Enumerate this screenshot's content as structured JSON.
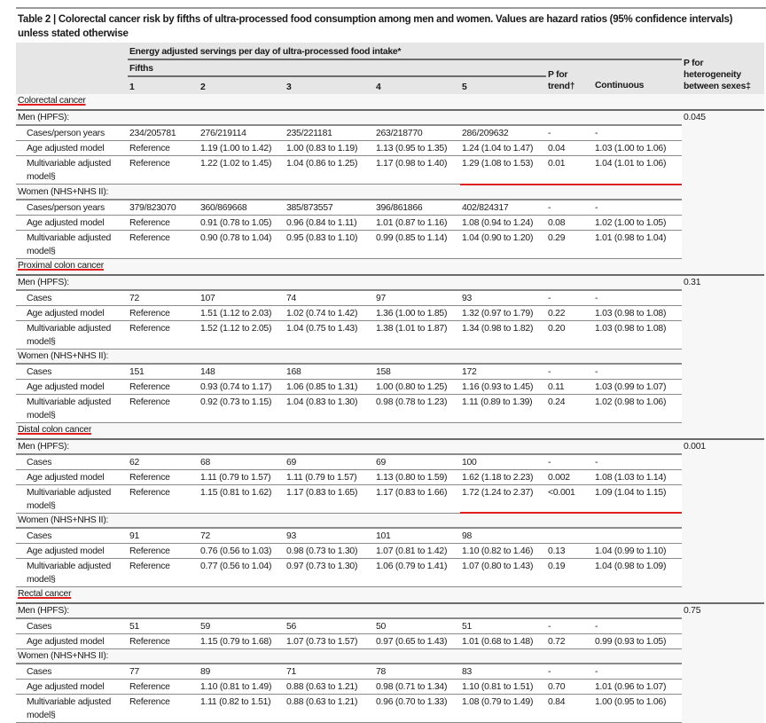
{
  "title": "Table 2 | Colorectal cancer risk by fifths of ultra-processed food consumption among men and women. Values are hazard ratios (95% confidence intervals) unless stated otherwise",
  "header": {
    "group_label": "Energy adjusted servings per day of ultra-processed food intake*",
    "fifths_label": "Fifths",
    "fifths": [
      "1",
      "2",
      "3",
      "4",
      "5"
    ],
    "p_trend": "P for trend†",
    "continuous": "Continuous",
    "p_het": "P for heterogeneity between sexes‡"
  },
  "highlight_color": "#e02020",
  "sections": [
    {
      "name": "Colorectal cancer",
      "p_het": "0.045",
      "groups": [
        {
          "label": "Men (HPFS):",
          "rows": [
            {
              "label": "Cases/person years",
              "cells": [
                "234/205781",
                "276/219114",
                "235/221181",
                "263/218770",
                "286/209632",
                "-",
                "-"
              ]
            },
            {
              "label": "Age adjusted model",
              "cells": [
                "Reference",
                "1.19 (1.00 to 1.42)",
                "1.00 (0.83 to 1.19)",
                "1.13 (0.95 to 1.35)",
                "1.24 (1.04 to 1.47)",
                "0.04",
                "1.03 (1.00 to 1.06)"
              ]
            },
            {
              "label": "Multivariable adjusted model§",
              "cells": [
                "Reference",
                "1.22 (1.02 to 1.45)",
                "1.04 (0.86 to 1.25)",
                "1.17 (0.98 to 1.40)",
                "1.29 (1.08 to 1.53)",
                "0.01",
                "1.04 (1.01 to 1.06)"
              ],
              "underlined": [
                4,
                5,
                6
              ]
            }
          ]
        },
        {
          "label": "Women (NHS+NHS II):",
          "rows": [
            {
              "label": "Cases/person years",
              "cells": [
                "379/823070",
                "360/869668",
                "385/873557",
                "396/861866",
                "402/824317",
                "-",
                "-"
              ]
            },
            {
              "label": "Age adjusted model",
              "cells": [
                "Reference",
                "0.91 (0.78 to 1.05)",
                "0.96 (0.84 to 1.11)",
                "1.01 (0.87 to 1.16)",
                "1.08 (0.94 to 1.24)",
                "0.08",
                "1.02 (1.00 to 1.05)"
              ]
            },
            {
              "label": "Multivariable adjusted model§",
              "cells": [
                "Reference",
                "0.90 (0.78 to 1.04)",
                "0.95 (0.83 to 1.10)",
                "0.99 (0.85 to 1.14)",
                "1.04 (0.90 to 1.20)",
                "0.29",
                "1.01 (0.98 to 1.04)"
              ]
            }
          ]
        }
      ]
    },
    {
      "name": "Proximal colon cancer",
      "p_het": "0.31",
      "groups": [
        {
          "label": "Men (HPFS):",
          "rows": [
            {
              "label": "Cases",
              "cells": [
                "72",
                "107",
                "74",
                "97",
                "93",
                "-",
                "-"
              ]
            },
            {
              "label": "Age adjusted model",
              "cells": [
                "Reference",
                "1.51 (1.12 to 2.03)",
                "1.02 (0.74 to 1.42)",
                "1.36 (1.00 to 1.85)",
                "1.32 (0.97 to 1.79)",
                "0.22",
                "1.03 (0.98 to 1.08)"
              ]
            },
            {
              "label": "Multivariable adjusted model§",
              "cells": [
                "Reference",
                "1.52 (1.12 to 2.05)",
                "1.04 (0.75 to 1.43)",
                "1.38 (1.01 to 1.87)",
                "1.34 (0.98 to 1.82)",
                "0.20",
                "1.03 (0.98 to 1.08)"
              ]
            }
          ]
        },
        {
          "label": "Women (NHS+NHS II):",
          "rows": [
            {
              "label": "Cases",
              "cells": [
                "151",
                "148",
                "168",
                "158",
                "172",
                "-",
                "-"
              ]
            },
            {
              "label": "Age adjusted model",
              "cells": [
                "Reference",
                "0.93 (0.74 to 1.17)",
                "1.06 (0.85 to 1.31)",
                "1.00 (0.80 to 1.25)",
                "1.16 (0.93 to 1.45)",
                "0.11",
                "1.03 (0.99 to 1.07)"
              ]
            },
            {
              "label": "Multivariable adjusted model§",
              "cells": [
                "Reference",
                "0.92 (0.73 to 1.15)",
                "1.04 (0.83 to 1.30)",
                "0.98 (0.78 to 1.23)",
                "1.11 (0.89 to 1.39)",
                "0.24",
                "1.02 (0.98 to 1.06)"
              ]
            }
          ]
        }
      ]
    },
    {
      "name": "Distal colon cancer",
      "p_het": "0.001",
      "groups": [
        {
          "label": "Men (HPFS):",
          "rows": [
            {
              "label": "Cases",
              "cells": [
                "62",
                "68",
                "69",
                "69",
                "100",
                "-",
                "-"
              ]
            },
            {
              "label": "Age adjusted model",
              "cells": [
                "Reference",
                "1.11 (0.79 to 1.57)",
                "1.11 (0.79 to 1.57)",
                "1.13 (0.80 to 1.59)",
                "1.62 (1.18 to 2.23)",
                "0.002",
                "1.08 (1.03 to 1.14)"
              ]
            },
            {
              "label": "Multivariable adjusted model§",
              "cells": [
                "Reference",
                "1.15 (0.81 to 1.62)",
                "1.17 (0.83 to 1.65)",
                "1.17 (0.83 to 1.66)",
                "1.72 (1.24 to 2.37)",
                "<0.001",
                "1.09 (1.04 to 1.15)"
              ],
              "underlined": [
                4,
                5,
                6
              ]
            }
          ]
        },
        {
          "label": "Women (NHS+NHS II):",
          "rows": [
            {
              "label": "Cases",
              "cells": [
                "91",
                "72",
                "93",
                "101",
                "98",
                "",
                ""
              ]
            },
            {
              "label": "Age adjusted model",
              "cells": [
                "Reference",
                "0.76 (0.56 to 1.03)",
                "0.98 (0.73 to 1.30)",
                "1.07 (0.81 to 1.42)",
                "1.10 (0.82 to 1.46)",
                "0.13",
                "1.04 (0.99 to 1.10)"
              ]
            },
            {
              "label": "Multivariable adjusted model§",
              "cells": [
                "Reference",
                "0.77 (0.56 to 1.04)",
                "0.97 (0.73 to 1.30)",
                "1.06 (0.79 to 1.41)",
                "1.07 (0.80 to 1.43)",
                "0.19",
                "1.04 (0.98 to 1.09)"
              ]
            }
          ]
        }
      ]
    },
    {
      "name": "Rectal cancer",
      "p_het": "0.75",
      "groups": [
        {
          "label": "Men (HPFS):",
          "rows": [
            {
              "label": "Cases",
              "cells": [
                "51",
                "59",
                "56",
                "50",
                "51",
                "-",
                "-"
              ]
            },
            {
              "label": "Age adjusted model",
              "cells": [
                "Reference",
                "1.15 (0.79 to 1.68)",
                "1.07 (0.73 to 1.57)",
                "0.97 (0.65 to 1.43)",
                "1.01 (0.68 to 1.48)",
                "0.72",
                "0.99 (0.93 to 1.05)"
              ]
            }
          ]
        },
        {
          "label": "Women (NHS+NHS II):",
          "rows": [
            {
              "label": "Cases",
              "cells": [
                "77",
                "89",
                "71",
                "78",
                "83",
                "-",
                "-"
              ]
            },
            {
              "label": "Age adjusted model",
              "cells": [
                "Reference",
                "1.10 (0.81 to 1.49)",
                "0.88 (0.63 to 1.21)",
                "0.98 (0.71 to 1.34)",
                "1.10 (0.81 to 1.51)",
                "0.70",
                "1.01 (0.96 to 1.07)"
              ]
            },
            {
              "label": "Multivariable adjusted model§",
              "cells": [
                "Reference",
                "1.11 (0.82 to 1.51)",
                "0.88 (0.63 to 1.21)",
                "0.96 (0.70 to 1.33)",
                "1.08 (0.79 to 1.49)",
                "0.84",
                "1.00 (0.95 to 1.06)"
              ]
            }
          ]
        }
      ]
    }
  ]
}
